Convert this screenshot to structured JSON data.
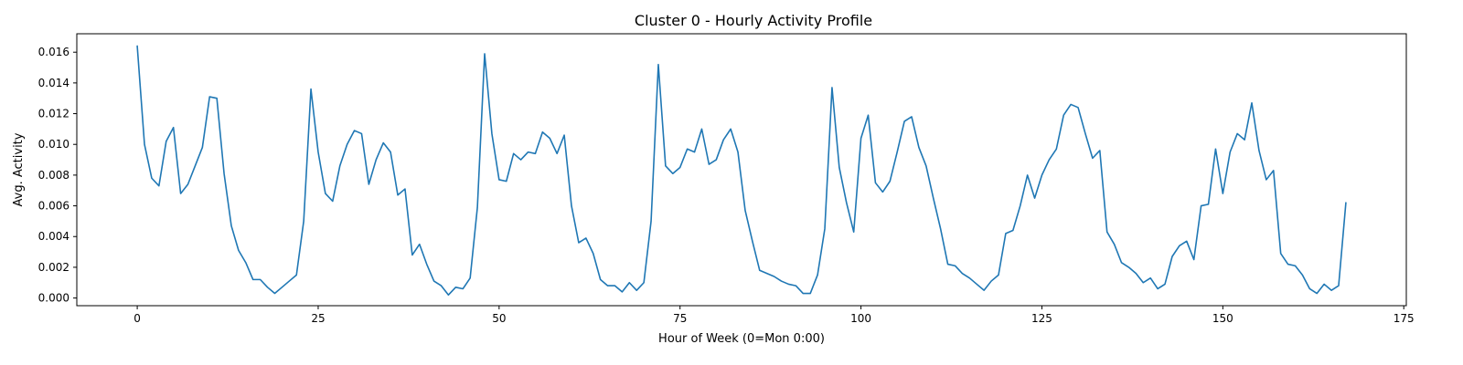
{
  "chart_data": {
    "type": "line",
    "title": "Cluster 0 - Hourly Activity Profile",
    "xlabel": "Hour of Week (0=Mon 0:00)",
    "ylabel": "Avg. Activity",
    "xlim": [
      -8.35,
      175.35
    ],
    "ylim": [
      -0.0005,
      0.0172
    ],
    "xticks": [
      0,
      25,
      50,
      75,
      100,
      125,
      150,
      175
    ],
    "yticks": [
      0.0,
      0.002,
      0.004,
      0.006,
      0.008,
      0.01,
      0.012,
      0.014,
      0.016
    ],
    "xtick_labels": [
      "0",
      "25",
      "50",
      "75",
      "100",
      "125",
      "150",
      "175"
    ],
    "ytick_labels": [
      "0.000",
      "0.002",
      "0.004",
      "0.006",
      "0.008",
      "0.010",
      "0.012",
      "0.014",
      "0.016"
    ],
    "grid": false,
    "line_color": "#1f77b4",
    "x_start": 0,
    "values": [
      0.0164,
      0.01,
      0.0078,
      0.0073,
      0.0102,
      0.0111,
      0.0068,
      0.0074,
      0.0086,
      0.0098,
      0.0131,
      0.013,
      0.0081,
      0.0047,
      0.0031,
      0.0023,
      0.0012,
      0.0012,
      0.0007,
      0.0003,
      0.0007,
      0.0011,
      0.0015,
      0.005,
      0.0136,
      0.0095,
      0.0068,
      0.0063,
      0.0086,
      0.01,
      0.0109,
      0.0107,
      0.0074,
      0.009,
      0.0101,
      0.0095,
      0.0067,
      0.0071,
      0.0028,
      0.0035,
      0.0022,
      0.0011,
      0.0008,
      0.0002,
      0.0007,
      0.0006,
      0.0013,
      0.0059,
      0.0159,
      0.0107,
      0.0077,
      0.0076,
      0.0094,
      0.009,
      0.0095,
      0.0094,
      0.0108,
      0.0104,
      0.0094,
      0.0106,
      0.006,
      0.0036,
      0.0039,
      0.0029,
      0.0012,
      0.0008,
      0.0008,
      0.0004,
      0.001,
      0.0005,
      0.001,
      0.005,
      0.0152,
      0.0086,
      0.0081,
      0.0085,
      0.0097,
      0.0095,
      0.011,
      0.0087,
      0.009,
      0.0103,
      0.011,
      0.0095,
      0.0057,
      0.0037,
      0.0018,
      0.0016,
      0.0014,
      0.0011,
      0.0009,
      0.0008,
      0.0003,
      0.0003,
      0.0015,
      0.0045,
      0.0137,
      0.0085,
      0.0062,
      0.0043,
      0.0104,
      0.0119,
      0.0075,
      0.0069,
      0.0076,
      0.0095,
      0.0115,
      0.0118,
      0.0098,
      0.0086,
      0.0065,
      0.0045,
      0.0022,
      0.0021,
      0.0016,
      0.0013,
      0.0009,
      0.0005,
      0.0011,
      0.0015,
      0.0042,
      0.0044,
      0.006,
      0.008,
      0.0065,
      0.008,
      0.009,
      0.0097,
      0.0119,
      0.0126,
      0.0124,
      0.0107,
      0.0091,
      0.0096,
      0.0043,
      0.0035,
      0.0023,
      0.002,
      0.0016,
      0.001,
      0.0013,
      0.0006,
      0.0009,
      0.0027,
      0.0034,
      0.0037,
      0.0025,
      0.006,
      0.0061,
      0.0097,
      0.0068,
      0.0095,
      0.0107,
      0.0103,
      0.0127,
      0.0096,
      0.0077,
      0.0083,
      0.0029,
      0.0022,
      0.0021,
      0.0015,
      0.0006,
      0.0003,
      0.0009,
      0.0005,
      0.0008,
      0.0062
    ]
  }
}
